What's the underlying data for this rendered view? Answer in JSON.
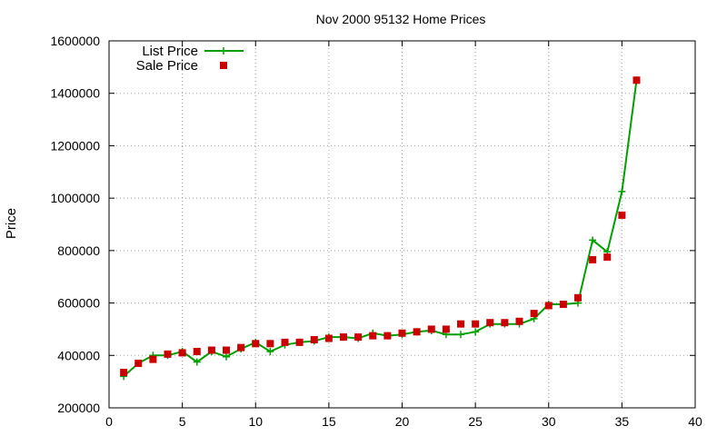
{
  "chart_data": {
    "type": "line",
    "title": "Nov 2000 95132 Home Prices",
    "xlabel": "",
    "ylabel": "Price",
    "xlim": [
      0,
      40
    ],
    "ylim": [
      200000,
      1600000
    ],
    "xticks": [
      0,
      5,
      10,
      15,
      20,
      25,
      30,
      35,
      40
    ],
    "yticks": [
      200000,
      400000,
      600000,
      800000,
      1000000,
      1200000,
      1400000,
      1600000
    ],
    "grid": true,
    "legend_position": "top-left",
    "series": [
      {
        "name": "List Price",
        "style": "line-plus",
        "color": "#00a000",
        "x": [
          1,
          2,
          3,
          4,
          5,
          6,
          7,
          8,
          9,
          10,
          11,
          12,
          13,
          14,
          15,
          16,
          17,
          18,
          19,
          20,
          21,
          22,
          23,
          24,
          25,
          26,
          27,
          28,
          29,
          30,
          31,
          32,
          33,
          34,
          35,
          36
        ],
        "values": [
          320000,
          370000,
          400000,
          400000,
          415000,
          375000,
          415000,
          395000,
          425000,
          450000,
          415000,
          440000,
          450000,
          455000,
          470000,
          470000,
          465000,
          485000,
          475000,
          480000,
          490000,
          495000,
          480000,
          480000,
          490000,
          520000,
          520000,
          520000,
          540000,
          595000,
          595000,
          600000,
          840000,
          795000,
          1025000,
          1450000
        ]
      },
      {
        "name": "Sale Price",
        "style": "square-markers",
        "color": "#cc0000",
        "x": [
          1,
          2,
          3,
          4,
          5,
          6,
          7,
          8,
          9,
          10,
          11,
          12,
          13,
          14,
          15,
          16,
          17,
          18,
          19,
          20,
          21,
          22,
          23,
          24,
          25,
          26,
          27,
          28,
          29,
          30,
          31,
          32,
          33,
          34,
          35,
          36
        ],
        "values": [
          335000,
          370000,
          385000,
          405000,
          410000,
          415000,
          420000,
          420000,
          430000,
          445000,
          445000,
          450000,
          450000,
          460000,
          465000,
          470000,
          470000,
          475000,
          475000,
          485000,
          490000,
          500000,
          500000,
          520000,
          520000,
          525000,
          525000,
          530000,
          560000,
          590000,
          595000,
          620000,
          765000,
          775000,
          935000,
          1450000
        ]
      }
    ]
  }
}
